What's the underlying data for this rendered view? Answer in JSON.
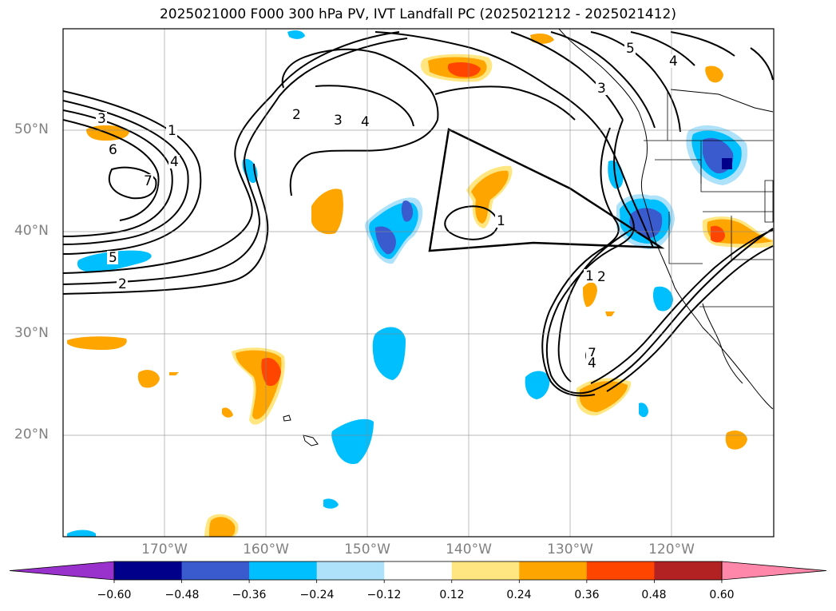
{
  "title": "2025021000 F000 300 hPa PV, IVT Landfall PC (2025021212 - 2025021412)",
  "lat_labels": [
    "50°N",
    "40°N",
    "30°N",
    "20°N"
  ],
  "lon_labels": [
    "170°W",
    "160°W",
    "150°W",
    "140°W",
    "130°W",
    "120°W"
  ],
  "map_extent": {
    "lon_min": -180,
    "lon_max": -110,
    "lat_min": 10,
    "lat_max": 60
  },
  "colorbar": {
    "tick_labels": [
      "−0.60",
      "−0.48",
      "−0.36",
      "−0.24",
      "−0.12",
      "0.12",
      "0.24",
      "0.36",
      "0.48",
      "0.60"
    ],
    "colors": [
      "#9932cc",
      "#00008b",
      "#3a5bcd",
      "#00bfff",
      "#aee2fa",
      "#ffffff",
      "#ffe680",
      "#ffa500",
      "#ff4500",
      "#b22222",
      "#ff88aa"
    ]
  },
  "contour_labels": [
    "3",
    "6",
    "7",
    "1",
    "4",
    "5",
    "2",
    "2",
    "3",
    "4",
    "1",
    "5",
    "4",
    "3",
    "1",
    "7",
    "4",
    "2"
  ]
}
